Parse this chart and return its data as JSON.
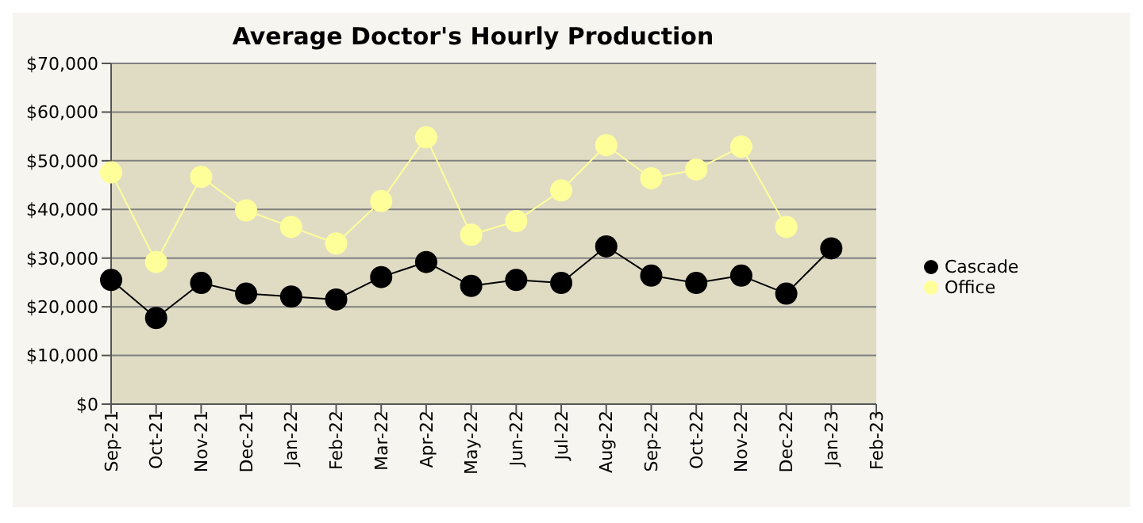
{
  "chart_data": {
    "type": "line",
    "title": "Average Doctor's Hourly Production",
    "categories": [
      "Sep-21",
      "Oct-21",
      "Nov-21",
      "Dec-21",
      "Jan-22",
      "Feb-22",
      "Mar-22",
      "Apr-22",
      "May-22",
      "Jun-22",
      "Jul-22",
      "Aug-22",
      "Sep-22",
      "Oct-22",
      "Nov-22",
      "Dec-22",
      "Jan-23",
      "Feb-23"
    ],
    "series": [
      {
        "name": "Office",
        "color": "#ffff99",
        "values": [
          47600,
          29200,
          46700,
          39800,
          36400,
          33000,
          41700,
          54800,
          34800,
          37600,
          43900,
          53200,
          46400,
          48200,
          52900,
          36400,
          null,
          null
        ]
      },
      {
        "name": "Cascade",
        "color": "#000000",
        "values": [
          25500,
          17700,
          24900,
          22700,
          22100,
          21500,
          26100,
          29200,
          24300,
          25500,
          24900,
          32400,
          26400,
          24900,
          26400,
          22700,
          32000,
          null
        ]
      }
    ],
    "ylim": [
      0,
      70000
    ],
    "yticks": [
      {
        "value": 0,
        "label": "$0"
      },
      {
        "value": 10000,
        "label": "$10,000"
      },
      {
        "value": 20000,
        "label": "$20,000"
      },
      {
        "value": 30000,
        "label": "$30,000"
      },
      {
        "value": 40000,
        "label": "$40,000"
      },
      {
        "value": 50000,
        "label": "$50,000"
      },
      {
        "value": 60000,
        "label": "$60,000"
      },
      {
        "value": 70000,
        "label": "$70,000"
      }
    ],
    "grid": "y",
    "legend": "right",
    "marker": "circle",
    "line_style": "solid"
  }
}
